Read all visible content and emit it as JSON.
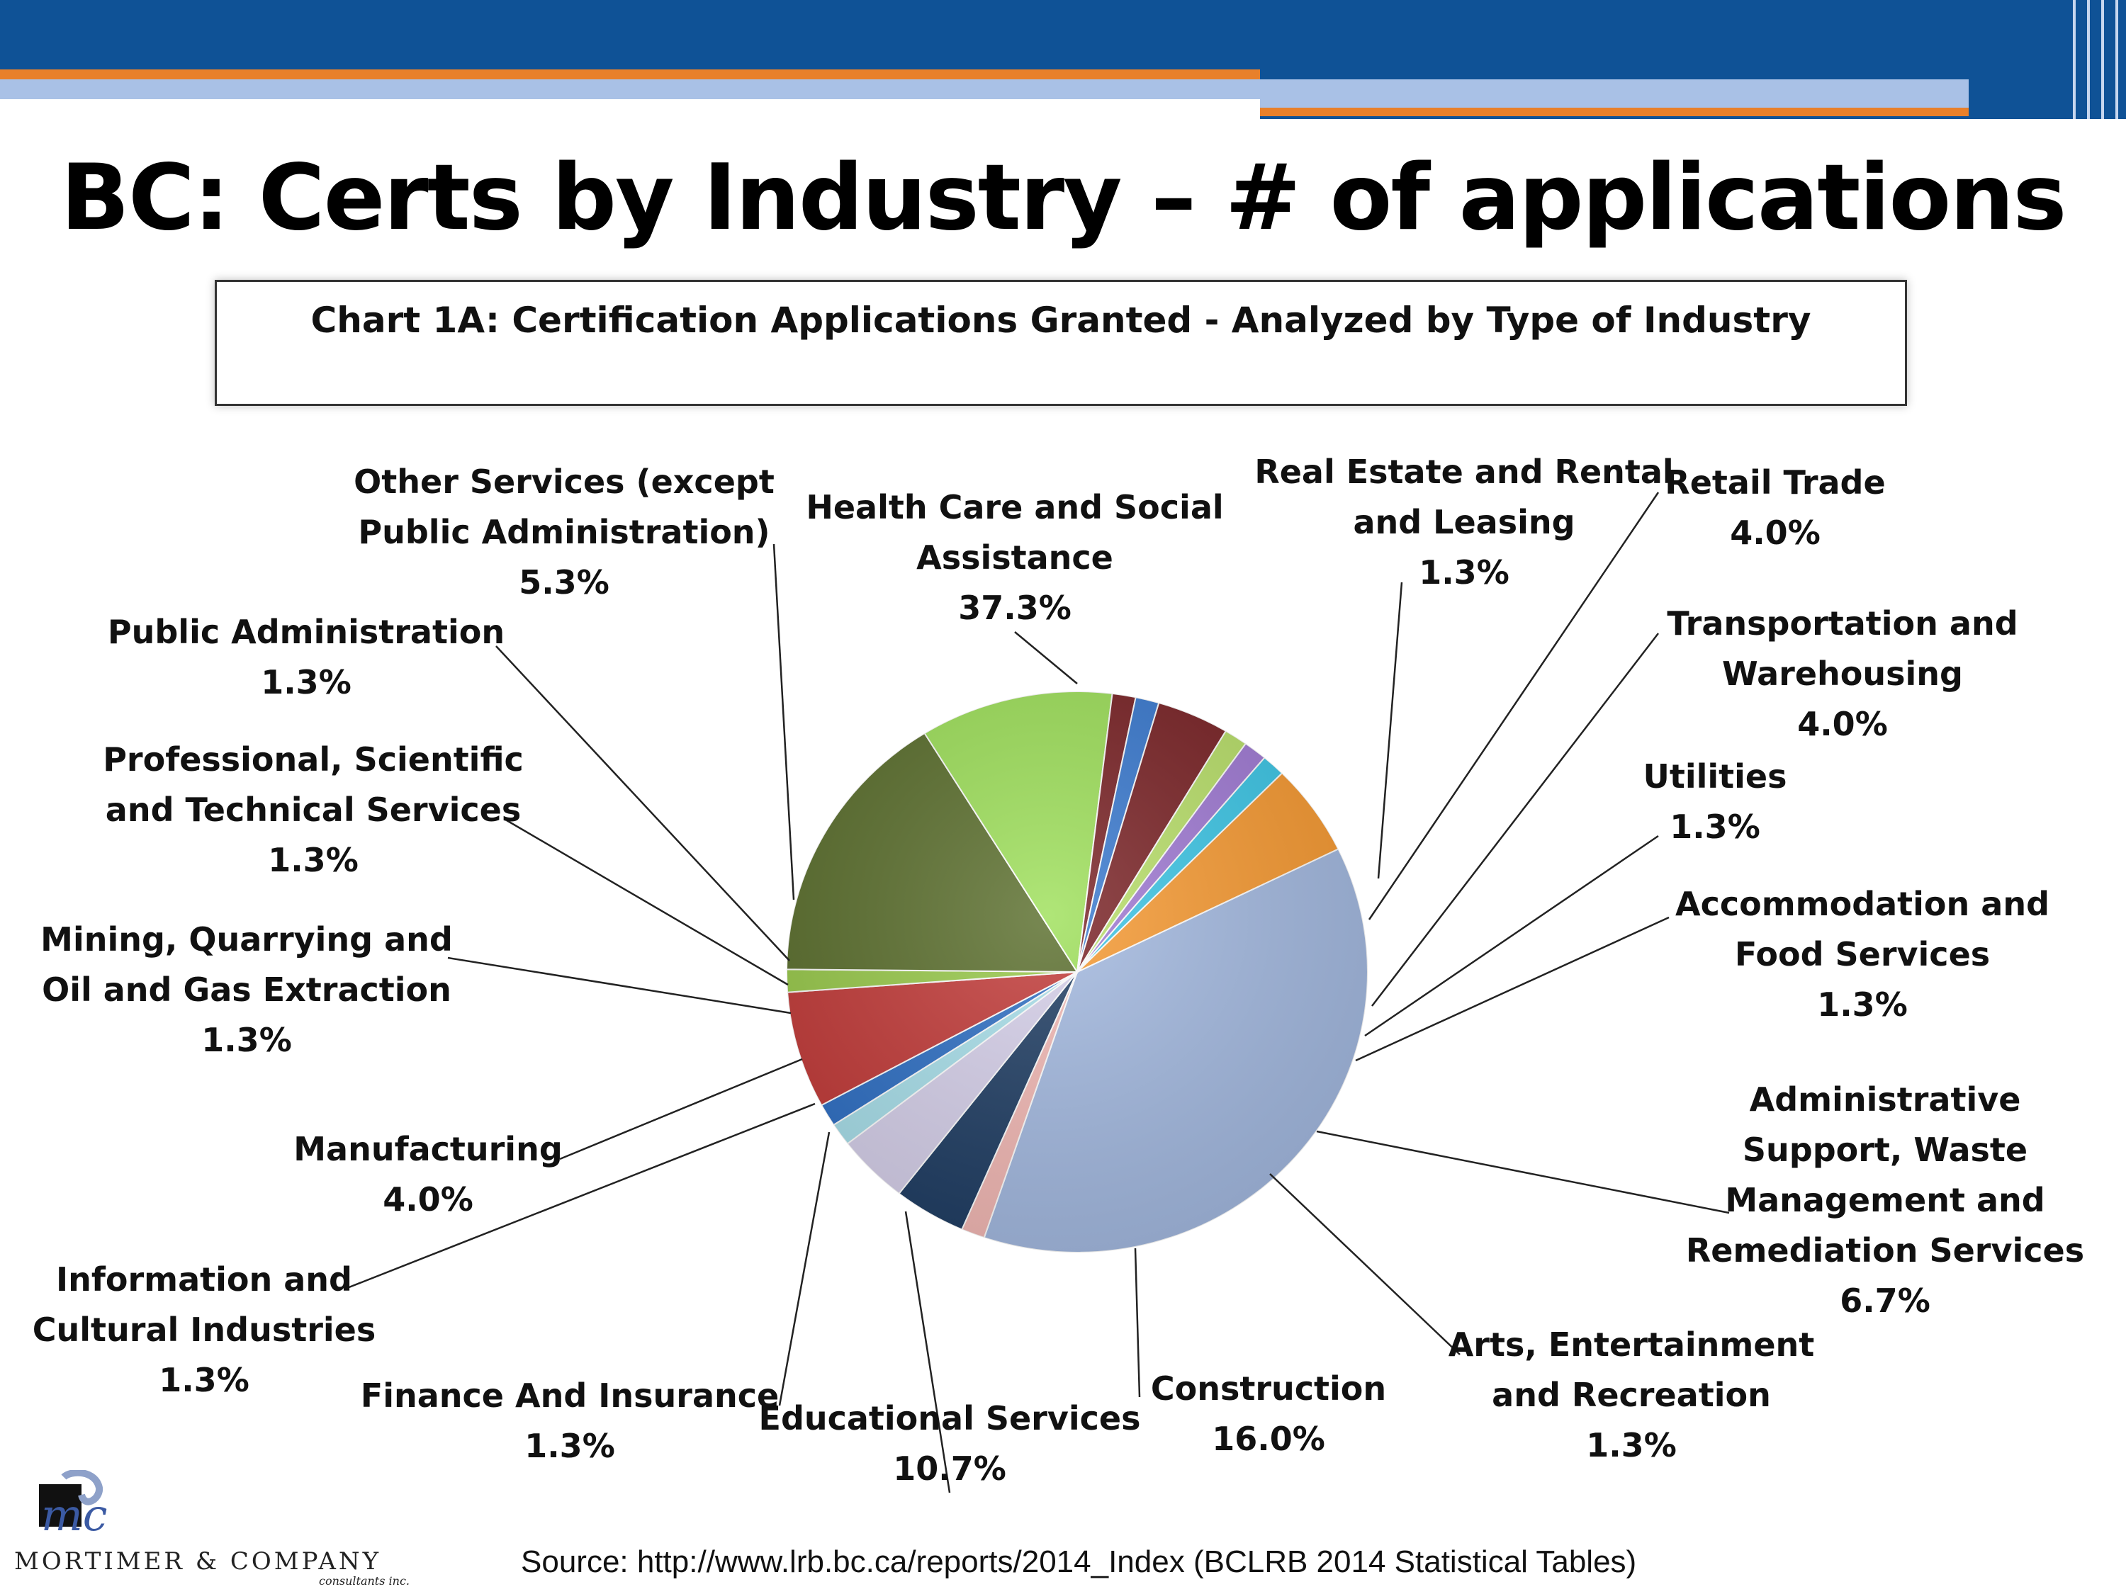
{
  "title": "BC: Certs by Industry – # of applications",
  "source": "Source: http://www.lrb.bc.ca/reports/2014_Index (BCLRB 2014 Statistical Tables)",
  "logo": {
    "monogram": "mc",
    "company": "MORTIMER & COMPANY",
    "tagline": "consultants inc."
  },
  "colors": {
    "header_blue": "#0f5296",
    "header_orange": "#e8802a",
    "header_light": "#a9c1e6"
  },
  "chart_data": {
    "type": "pie",
    "title": "Chart 1A: Certification Applications Granted - Analyzed by Type of Industry",
    "legend": "none",
    "slices": [
      {
        "lines": [
          "Health Care and Social",
          "Assistance"
        ],
        "value": 37.3,
        "label": "37.3%",
        "color": "#a3b9e0"
      },
      {
        "lines": [
          "Real Estate and Rental",
          "and Leasing"
        ],
        "value": 1.3,
        "label": "1.3%",
        "color": "#f2b8b4"
      },
      {
        "lines": [
          "Retail Trade"
        ],
        "value": 4.0,
        "label": "4.0%",
        "color": "#1f3d63"
      },
      {
        "lines": [
          "Transportation and",
          "Warehousing"
        ],
        "value": 4.0,
        "label": "4.0%",
        "color": "#d6d0ea"
      },
      {
        "lines": [
          "Utilities"
        ],
        "value": 1.3,
        "label": "1.3%",
        "color": "#a8dfea"
      },
      {
        "lines": [
          "Accommodation and",
          "Food Services"
        ],
        "value": 1.3,
        "label": "1.3%",
        "color": "#2e6fc4"
      },
      {
        "lines": [
          "Administrative",
          "Support, Waste",
          "Management and",
          "Remediation Services"
        ],
        "value": 6.7,
        "label": "6.7%",
        "color": "#c23a38"
      },
      {
        "lines": [
          "Arts, Entertainment",
          "and Recreation"
        ],
        "value": 1.3,
        "label": "1.3%",
        "color": "#98c94a"
      },
      {
        "lines": [
          "Construction"
        ],
        "value": 16.0,
        "label": "16.0%",
        "color": "#5a6e2c"
      },
      {
        "lines": [
          "Educational Services"
        ],
        "value": 10.7,
        "label": "10.7%",
        "color": "#9ee05a"
      },
      {
        "lines": [
          "Finance And Insurance"
        ],
        "value": 1.3,
        "label": "1.3%",
        "color": "#7a2326"
      },
      {
        "lines": [
          "Information and",
          "Cultural Industries"
        ],
        "value": 1.3,
        "label": "1.3%",
        "color": "#3a7ad0"
      },
      {
        "lines": [
          "Manufacturing"
        ],
        "value": 4.0,
        "label": "4.0%",
        "color": "#7a2326"
      },
      {
        "lines": [
          "Mining, Quarrying and",
          "Oil and Gas Extraction"
        ],
        "value": 1.3,
        "label": "1.3%",
        "color": "#b9e06a"
      },
      {
        "lines": [
          "Professional, Scientific",
          "and Technical Services"
        ],
        "value": 1.3,
        "label": "1.3%",
        "color": "#a07ad4"
      },
      {
        "lines": [
          "Public Administration"
        ],
        "value": 1.3,
        "label": "1.3%",
        "color": "#3cc6e6"
      },
      {
        "lines": [
          "Other Services (except",
          "Public Administration)"
        ],
        "value": 5.3,
        "label": "5.3%",
        "color": "#f79a32"
      }
    ]
  }
}
